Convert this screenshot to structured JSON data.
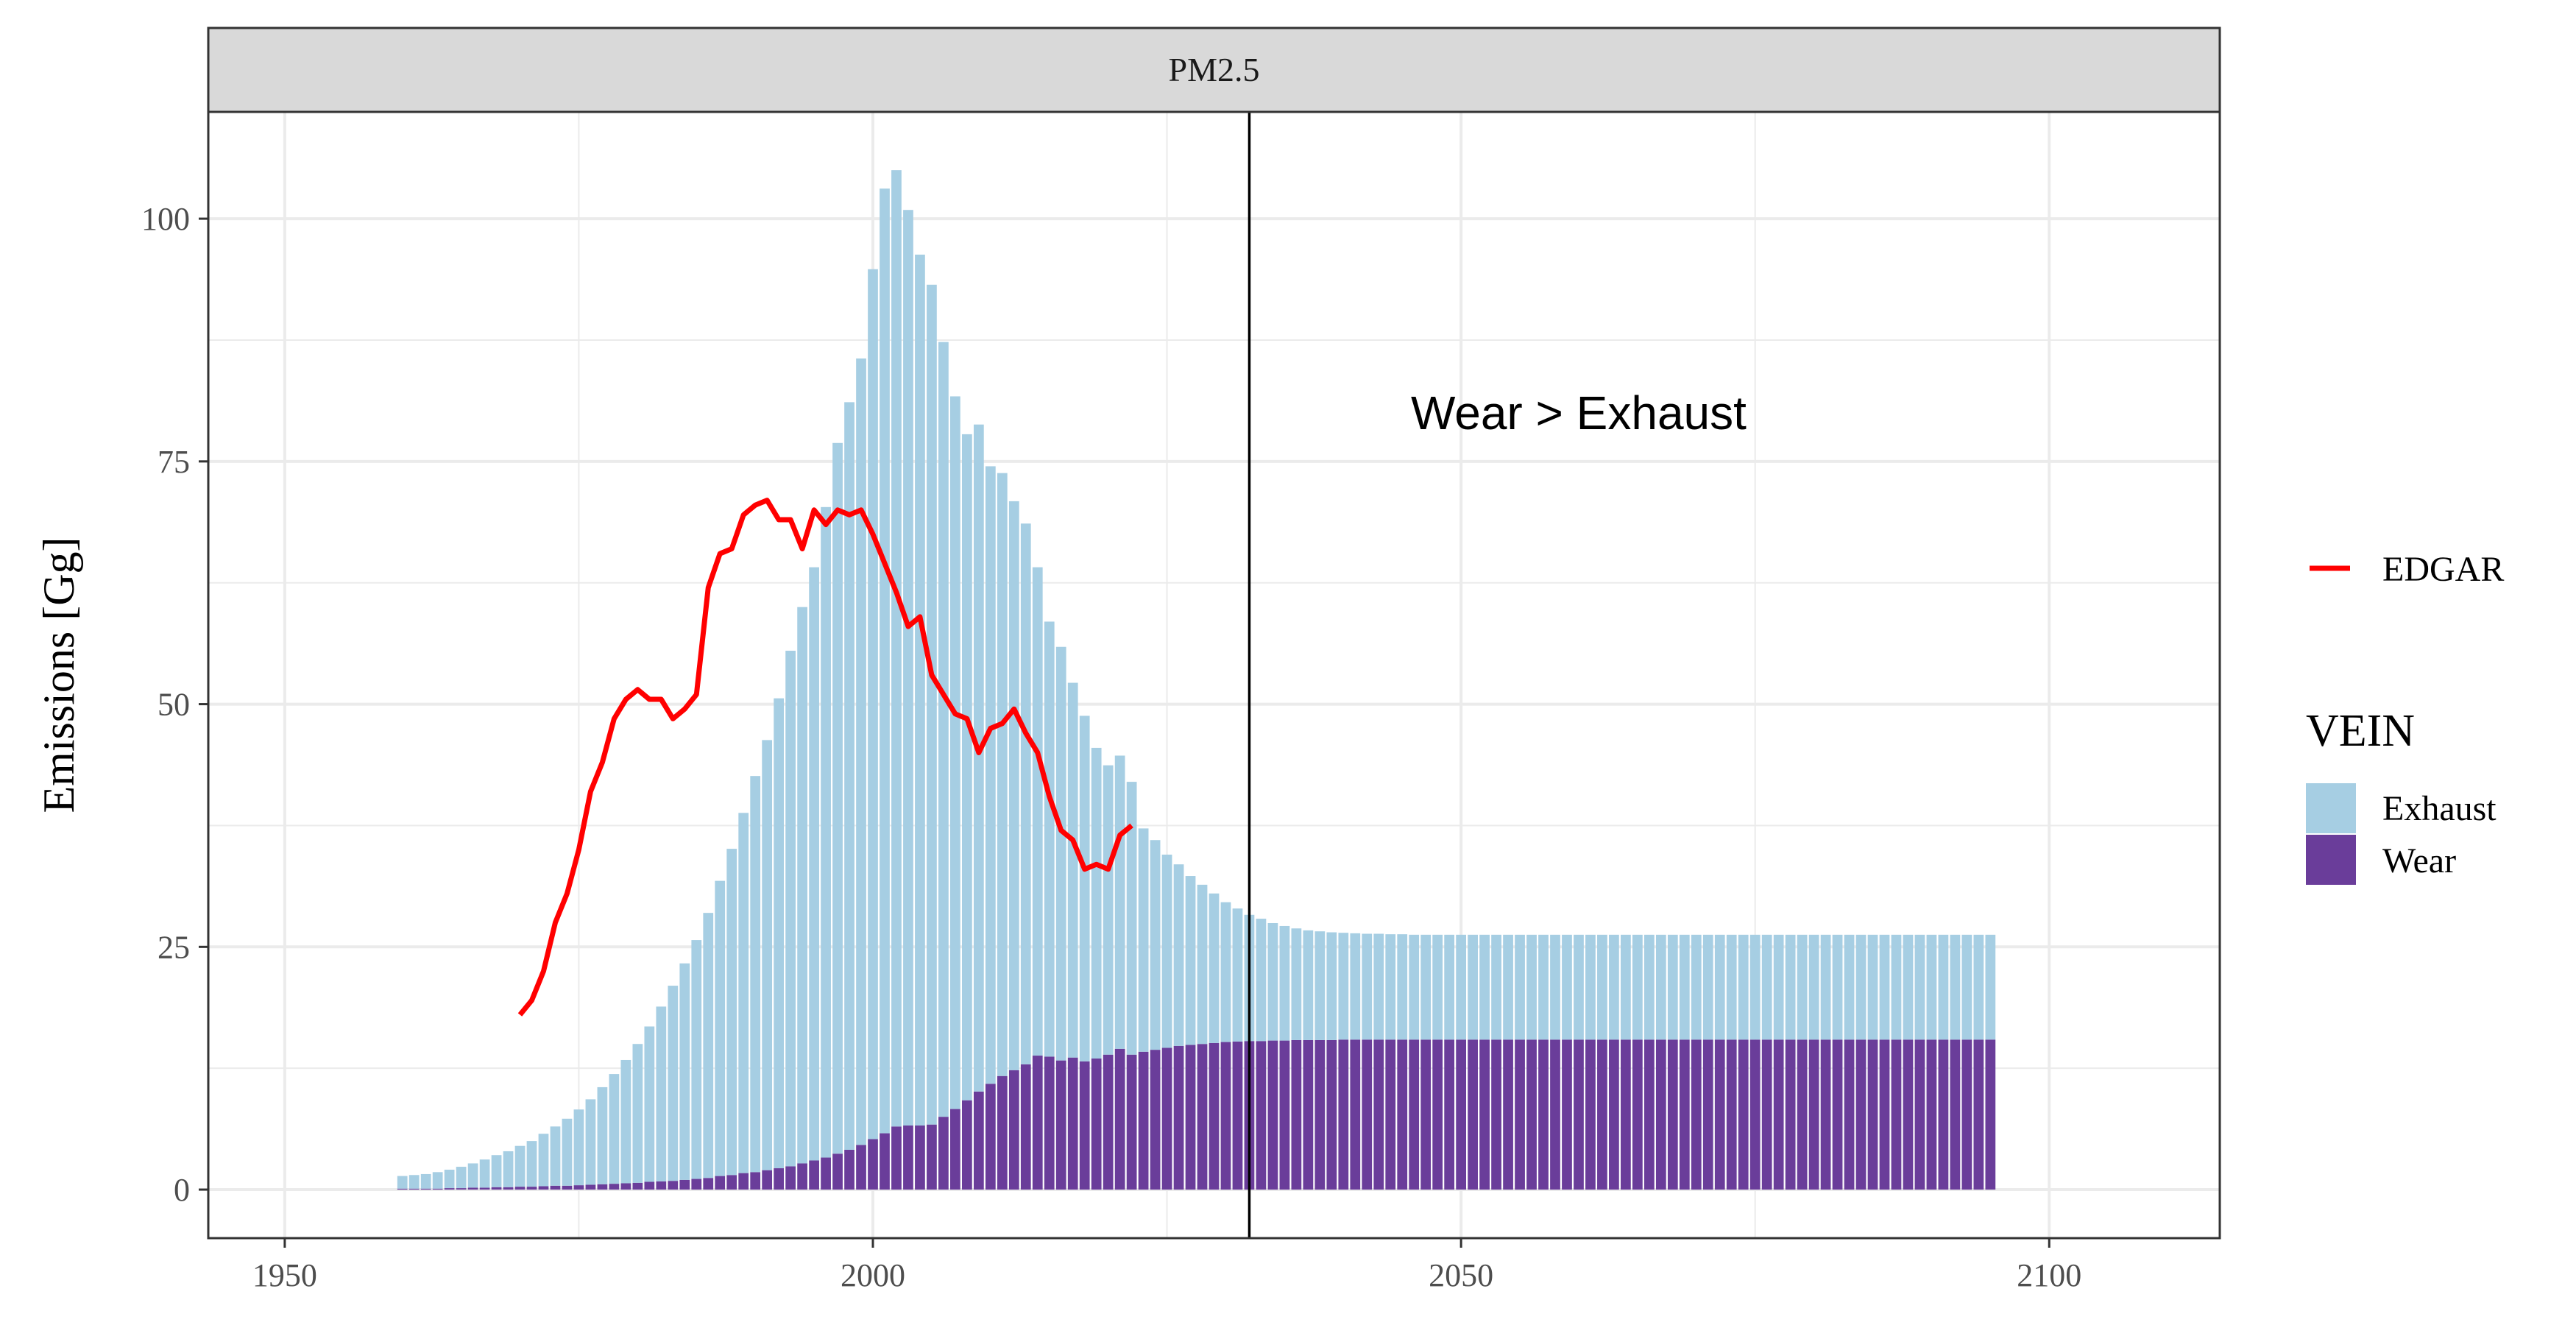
{
  "chart_data": {
    "type": "bar",
    "stacked": true,
    "facet_label": "PM2.5",
    "ylabel": "Emissions [Gg]",
    "xlabel": "",
    "xlim": [
      1943.5,
      2114.5
    ],
    "ylim": [
      -5,
      111
    ],
    "x_ticks": [
      1950,
      2000,
      2050,
      2100
    ],
    "y_ticks": [
      0,
      25,
      50,
      75,
      100
    ],
    "grid": true,
    "legend_position": "right",
    "vline_x": 2032,
    "annotation": "Wear > Exhaust",
    "annotation_pos": {
      "x": 2060,
      "y": 80
    },
    "line_series": {
      "name": "EDGAR",
      "color": "#ff0000",
      "x": [
        1970,
        1971,
        1972,
        1973,
        1974,
        1975,
        1976,
        1977,
        1978,
        1979,
        1980,
        1981,
        1982,
        1983,
        1984,
        1985,
        1986,
        1987,
        1988,
        1989,
        1990,
        1991,
        1992,
        1993,
        1994,
        1995,
        1996,
        1997,
        1998,
        1999,
        2000,
        2001,
        2002,
        2003,
        2004,
        2005,
        2006,
        2007,
        2008,
        2009,
        2010,
        2011,
        2012,
        2013,
        2014,
        2015,
        2016,
        2017,
        2018,
        2019,
        2020,
        2021,
        2022
      ],
      "y": [
        18.0,
        19.5,
        22.5,
        27.5,
        30.5,
        35.0,
        41.0,
        44.0,
        48.5,
        50.5,
        51.5,
        50.5,
        50.5,
        48.5,
        49.5,
        51.0,
        62.0,
        65.5,
        66.0,
        69.5,
        70.5,
        71.0,
        69.0,
        69.0,
        66.0,
        70.0,
        68.5,
        70.0,
        69.5,
        70.0,
        67.5,
        64.5,
        61.5,
        58.0,
        59.0,
        53.0,
        51.0,
        49.0,
        48.5,
        45.0,
        47.5,
        48.0,
        49.5,
        47.0,
        45.0,
        40.5,
        37.0,
        36.0,
        33.0,
        33.5,
        33.0,
        36.5,
        37.5
      ]
    },
    "legend_line_label": "EDGAR",
    "legend_title": "VEIN",
    "series": [
      {
        "name": "Exhaust",
        "color": "#a6cee3",
        "start_year": 1960,
        "values": [
          1.3,
          1.4,
          1.5,
          1.7,
          1.9,
          2.2,
          2.5,
          2.9,
          3.3,
          3.7,
          4.2,
          4.7,
          5.4,
          6.1,
          6.9,
          7.8,
          8.8,
          10.0,
          11.3,
          12.7,
          14.3,
          16.0,
          18.0,
          20.1,
          22.3,
          24.6,
          27.3,
          30.4,
          33.6,
          37.1,
          40.8,
          44.3,
          48.4,
          53.1,
          57.3,
          61.1,
          67.0,
          73.2,
          77.0,
          81.0,
          89.6,
          97.3,
          98.5,
          94.3,
          89.7,
          86.5,
          79.8,
          73.4,
          68.6,
          68.7,
          63.6,
          62.1,
          58.6,
          55.7,
          50.3,
          44.8,
          42.6,
          38.6,
          35.6,
          32.0,
          29.8,
          30.2,
          28.1,
          23.0,
          21.6,
          19.9,
          18.7,
          17.4,
          16.4,
          15.4,
          14.4,
          13.7,
          13.0,
          12.6,
          12.1,
          11.8,
          11.5,
          11.3,
          11.2,
          11.1,
          11.0,
          10.95,
          10.9,
          10.9,
          10.85,
          10.85,
          10.8,
          10.8,
          10.8,
          10.8,
          10.8,
          10.8,
          10.8,
          10.8,
          10.8,
          10.8,
          10.8,
          10.8,
          10.8,
          10.8,
          10.8,
          10.8,
          10.8,
          10.8,
          10.8,
          10.8,
          10.8,
          10.8,
          10.8,
          10.8,
          10.8,
          10.8,
          10.8,
          10.8,
          10.8,
          10.8,
          10.8,
          10.8,
          10.8,
          10.8,
          10.8,
          10.8,
          10.8,
          10.8,
          10.8,
          10.8,
          10.8,
          10.8,
          10.8,
          10.8,
          10.8,
          10.8,
          10.8,
          10.8,
          10.8,
          10.8
        ]
      },
      {
        "name": "Wear",
        "color": "#6a3d9a",
        "start_year": 1960,
        "values": [
          0.1,
          0.1,
          0.1,
          0.1,
          0.15,
          0.15,
          0.2,
          0.2,
          0.25,
          0.25,
          0.3,
          0.3,
          0.35,
          0.4,
          0.4,
          0.45,
          0.5,
          0.55,
          0.6,
          0.65,
          0.7,
          0.8,
          0.85,
          0.9,
          1.0,
          1.1,
          1.2,
          1.4,
          1.5,
          1.7,
          1.8,
          2.0,
          2.2,
          2.4,
          2.7,
          3.0,
          3.3,
          3.7,
          4.1,
          4.6,
          5.2,
          5.8,
          6.5,
          6.6,
          6.6,
          6.7,
          7.5,
          8.3,
          9.2,
          10.1,
          10.9,
          11.7,
          12.3,
          12.9,
          13.8,
          13.7,
          13.3,
          13.6,
          13.2,
          13.5,
          13.9,
          14.5,
          13.9,
          14.2,
          14.4,
          14.6,
          14.8,
          14.9,
          15.0,
          15.1,
          15.2,
          15.25,
          15.3,
          15.3,
          15.35,
          15.35,
          15.4,
          15.4,
          15.4,
          15.4,
          15.45,
          15.45,
          15.45,
          15.45,
          15.45,
          15.45,
          15.45,
          15.45,
          15.45,
          15.45,
          15.45,
          15.45,
          15.45,
          15.45,
          15.45,
          15.45,
          15.45,
          15.45,
          15.45,
          15.45,
          15.45,
          15.45,
          15.45,
          15.45,
          15.45,
          15.45,
          15.45,
          15.45,
          15.45,
          15.45,
          15.45,
          15.45,
          15.45,
          15.45,
          15.45,
          15.45,
          15.45,
          15.45,
          15.45,
          15.45,
          15.45,
          15.45,
          15.45,
          15.45,
          15.45,
          15.45,
          15.45,
          15.45,
          15.45,
          15.45,
          15.45,
          15.45,
          15.45,
          15.45,
          15.45,
          15.45
        ]
      }
    ]
  }
}
